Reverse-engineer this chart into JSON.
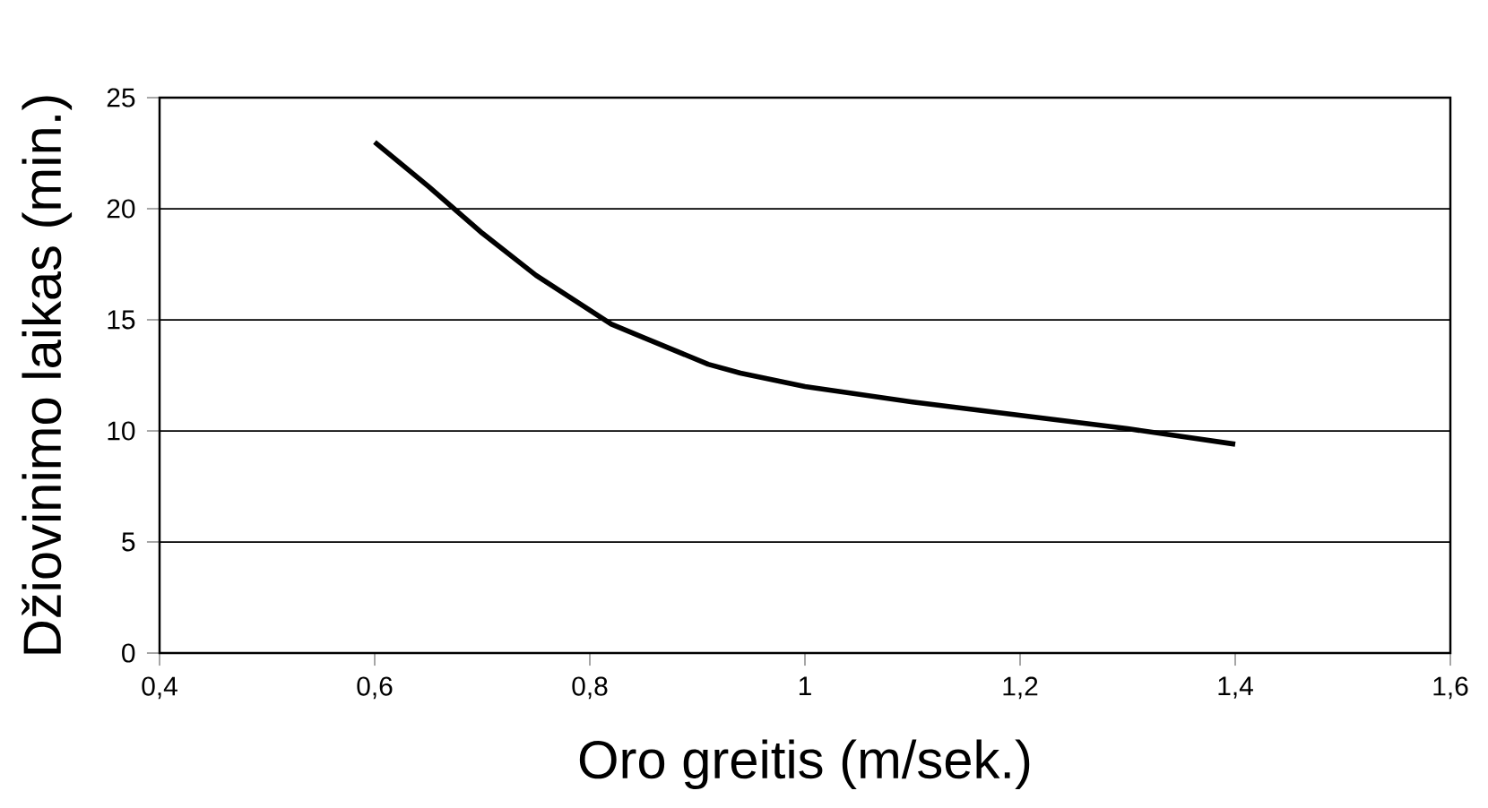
{
  "chart_data": {
    "type": "line",
    "xlabel": "Oro greitis (m/sek.)",
    "ylabel": "Džiovinimo laikas (min.)",
    "x": [
      0.6,
      0.65,
      0.7,
      0.75,
      0.82,
      0.85,
      0.91,
      0.94,
      1.0,
      1.1,
      1.2,
      1.3,
      1.4
    ],
    "values": [
      23.0,
      21.0,
      18.9,
      17.0,
      14.8,
      14.2,
      13.0,
      12.6,
      12.0,
      11.3,
      10.7,
      10.1,
      9.4
    ],
    "color": "#000000",
    "xlim": [
      0.4,
      1.6
    ],
    "ylim": [
      0,
      25
    ],
    "xticks": [
      {
        "value": 0.4,
        "label": "0,4"
      },
      {
        "value": 0.6,
        "label": "0,6"
      },
      {
        "value": 0.8,
        "label": "0,8"
      },
      1,
      {
        "value": 1.2,
        "label": "1,2"
      },
      {
        "value": 1.4,
        "label": "1,4"
      },
      {
        "value": 1.6,
        "label": "1,6"
      }
    ],
    "yticks": [
      0,
      5,
      10,
      15,
      20,
      25
    ],
    "grid": "y",
    "marker": "none",
    "line_style": "solid"
  }
}
